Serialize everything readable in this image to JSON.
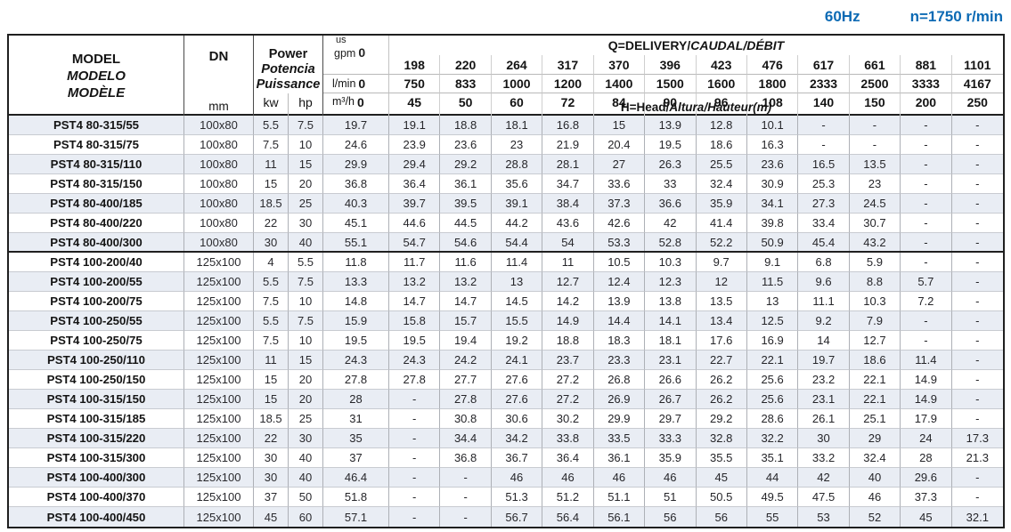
{
  "topbar": {
    "frequency": "60Hz",
    "speed": "n=1750 r/min"
  },
  "colors": {
    "accent": "#0c6ab4",
    "row_shade": "#e9edf4"
  },
  "table": {
    "model_header": [
      "MODEL",
      "MODELO",
      "MODÈLE"
    ],
    "dn_header": "DN",
    "dn_unit": "mm",
    "power_header": [
      "Power",
      "Potencia",
      "Puissance"
    ],
    "power_units": [
      "kw",
      "hp"
    ],
    "zero": "0",
    "flow_units": {
      "gpm_prefix": "us",
      "gpm": "gpm",
      "lmin": "l/min",
      "m3h": "m³/h"
    },
    "q_title": {
      "main": "Q=DELIVERY/",
      "italic": "CAUDAL/DÉBIT"
    },
    "h_title": {
      "main": "H=Head/",
      "italic": "Altura/Hauteur(m)"
    },
    "gpm_values": [
      "198",
      "220",
      "264",
      "317",
      "370",
      "396",
      "423",
      "476",
      "617",
      "661",
      "881",
      "1101"
    ],
    "lmin_values": [
      "750",
      "833",
      "1000",
      "1200",
      "1400",
      "1500",
      "1600",
      "1800",
      "2333",
      "2500",
      "3333",
      "4167"
    ],
    "m3h_values": [
      "45",
      "50",
      "60",
      "72",
      "84",
      "90",
      "96",
      "108",
      "140",
      "150",
      "200",
      "250"
    ],
    "thick_separator_after": "PST4 80-400/300",
    "rows": [
      {
        "model": "PST4 80-315/55",
        "dn": "100x80",
        "kw": "5.5",
        "hp": "7.5",
        "head": [
          "19.7",
          "19.1",
          "18.8",
          "18.1",
          "16.8",
          "15",
          "13.9",
          "12.8",
          "10.1",
          "-",
          "-",
          "-",
          "-"
        ]
      },
      {
        "model": "PST4 80-315/75",
        "dn": "100x80",
        "kw": "7.5",
        "hp": "10",
        "head": [
          "24.6",
          "23.9",
          "23.6",
          "23",
          "21.9",
          "20.4",
          "19.5",
          "18.6",
          "16.3",
          "-",
          "-",
          "-",
          "-"
        ]
      },
      {
        "model": "PST4 80-315/110",
        "dn": "100x80",
        "kw": "11",
        "hp": "15",
        "head": [
          "29.9",
          "29.4",
          "29.2",
          "28.8",
          "28.1",
          "27",
          "26.3",
          "25.5",
          "23.6",
          "16.5",
          "13.5",
          "-",
          "-"
        ]
      },
      {
        "model": "PST4 80-315/150",
        "dn": "100x80",
        "kw": "15",
        "hp": "20",
        "head": [
          "36.8",
          "36.4",
          "36.1",
          "35.6",
          "34.7",
          "33.6",
          "33",
          "32.4",
          "30.9",
          "25.3",
          "23",
          "-",
          "-"
        ]
      },
      {
        "model": "PST4 80-400/185",
        "dn": "100x80",
        "kw": "18.5",
        "hp": "25",
        "head": [
          "40.3",
          "39.7",
          "39.5",
          "39.1",
          "38.4",
          "37.3",
          "36.6",
          "35.9",
          "34.1",
          "27.3",
          "24.5",
          "-",
          "-"
        ]
      },
      {
        "model": "PST4 80-400/220",
        "dn": "100x80",
        "kw": "22",
        "hp": "30",
        "head": [
          "45.1",
          "44.6",
          "44.5",
          "44.2",
          "43.6",
          "42.6",
          "42",
          "41.4",
          "39.8",
          "33.4",
          "30.7",
          "-",
          "-"
        ]
      },
      {
        "model": "PST4 80-400/300",
        "dn": "100x80",
        "kw": "30",
        "hp": "40",
        "head": [
          "55.1",
          "54.7",
          "54.6",
          "54.4",
          "54",
          "53.3",
          "52.8",
          "52.2",
          "50.9",
          "45.4",
          "43.2",
          "-",
          "-"
        ]
      },
      {
        "model": "PST4 100-200/40",
        "dn": "125x100",
        "kw": "4",
        "hp": "5.5",
        "head": [
          "11.8",
          "11.7",
          "11.6",
          "11.4",
          "11",
          "10.5",
          "10.3",
          "9.7",
          "9.1",
          "6.8",
          "5.9",
          "-",
          "-"
        ]
      },
      {
        "model": "PST4 100-200/55",
        "dn": "125x100",
        "kw": "5.5",
        "hp": "7.5",
        "head": [
          "13.3",
          "13.2",
          "13.2",
          "13",
          "12.7",
          "12.4",
          "12.3",
          "12",
          "11.5",
          "9.6",
          "8.8",
          "5.7",
          "-"
        ]
      },
      {
        "model": "PST4 100-200/75",
        "dn": "125x100",
        "kw": "7.5",
        "hp": "10",
        "head": [
          "14.8",
          "14.7",
          "14.7",
          "14.5",
          "14.2",
          "13.9",
          "13.8",
          "13.5",
          "13",
          "11.1",
          "10.3",
          "7.2",
          "-"
        ]
      },
      {
        "model": "PST4 100-250/55",
        "dn": "125x100",
        "kw": "5.5",
        "hp": "7.5",
        "head": [
          "15.9",
          "15.8",
          "15.7",
          "15.5",
          "14.9",
          "14.4",
          "14.1",
          "13.4",
          "12.5",
          "9.2",
          "7.9",
          "-",
          "-"
        ]
      },
      {
        "model": "PST4 100-250/75",
        "dn": "125x100",
        "kw": "7.5",
        "hp": "10",
        "head": [
          "19.5",
          "19.5",
          "19.4",
          "19.2",
          "18.8",
          "18.3",
          "18.1",
          "17.6",
          "16.9",
          "14",
          "12.7",
          "-",
          "-"
        ]
      },
      {
        "model": "PST4 100-250/110",
        "dn": "125x100",
        "kw": "11",
        "hp": "15",
        "head": [
          "24.3",
          "24.3",
          "24.2",
          "24.1",
          "23.7",
          "23.3",
          "23.1",
          "22.7",
          "22.1",
          "19.7",
          "18.6",
          "11.4",
          "-"
        ]
      },
      {
        "model": "PST4 100-250/150",
        "dn": "125x100",
        "kw": "15",
        "hp": "20",
        "head": [
          "27.8",
          "27.8",
          "27.7",
          "27.6",
          "27.2",
          "26.8",
          "26.6",
          "26.2",
          "25.6",
          "23.2",
          "22.1",
          "14.9",
          "-"
        ]
      },
      {
        "model": "PST4 100-315/150",
        "dn": "125x100",
        "kw": "15",
        "hp": "20",
        "head": [
          "28",
          "-",
          "27.8",
          "27.6",
          "27.2",
          "26.9",
          "26.7",
          "26.2",
          "25.6",
          "23.1",
          "22.1",
          "14.9",
          "-"
        ]
      },
      {
        "model": "PST4 100-315/185",
        "dn": "125x100",
        "kw": "18.5",
        "hp": "25",
        "head": [
          "31",
          "-",
          "30.8",
          "30.6",
          "30.2",
          "29.9",
          "29.7",
          "29.2",
          "28.6",
          "26.1",
          "25.1",
          "17.9",
          "-"
        ]
      },
      {
        "model": "PST4 100-315/220",
        "dn": "125x100",
        "kw": "22",
        "hp": "30",
        "head": [
          "35",
          "-",
          "34.4",
          "34.2",
          "33.8",
          "33.5",
          "33.3",
          "32.8",
          "32.2",
          "30",
          "29",
          "24",
          "17.3"
        ]
      },
      {
        "model": "PST4 100-315/300",
        "dn": "125x100",
        "kw": "30",
        "hp": "40",
        "head": [
          "37",
          "-",
          "36.8",
          "36.7",
          "36.4",
          "36.1",
          "35.9",
          "35.5",
          "35.1",
          "33.2",
          "32.4",
          "28",
          "21.3"
        ]
      },
      {
        "model": "PST4 100-400/300",
        "dn": "125x100",
        "kw": "30",
        "hp": "40",
        "head": [
          "46.4",
          "-",
          "-",
          "46",
          "46",
          "46",
          "46",
          "45",
          "44",
          "42",
          "40",
          "29.6",
          "-"
        ]
      },
      {
        "model": "PST4 100-400/370",
        "dn": "125x100",
        "kw": "37",
        "hp": "50",
        "head": [
          "51.8",
          "-",
          "-",
          "51.3",
          "51.2",
          "51.1",
          "51",
          "50.5",
          "49.5",
          "47.5",
          "46",
          "37.3",
          "-"
        ]
      },
      {
        "model": "PST4 100-400/450",
        "dn": "125x100",
        "kw": "45",
        "hp": "60",
        "head": [
          "57.1",
          "-",
          "-",
          "56.7",
          "56.4",
          "56.1",
          "56",
          "56",
          "55",
          "53",
          "52",
          "45",
          "32.1"
        ]
      }
    ]
  }
}
